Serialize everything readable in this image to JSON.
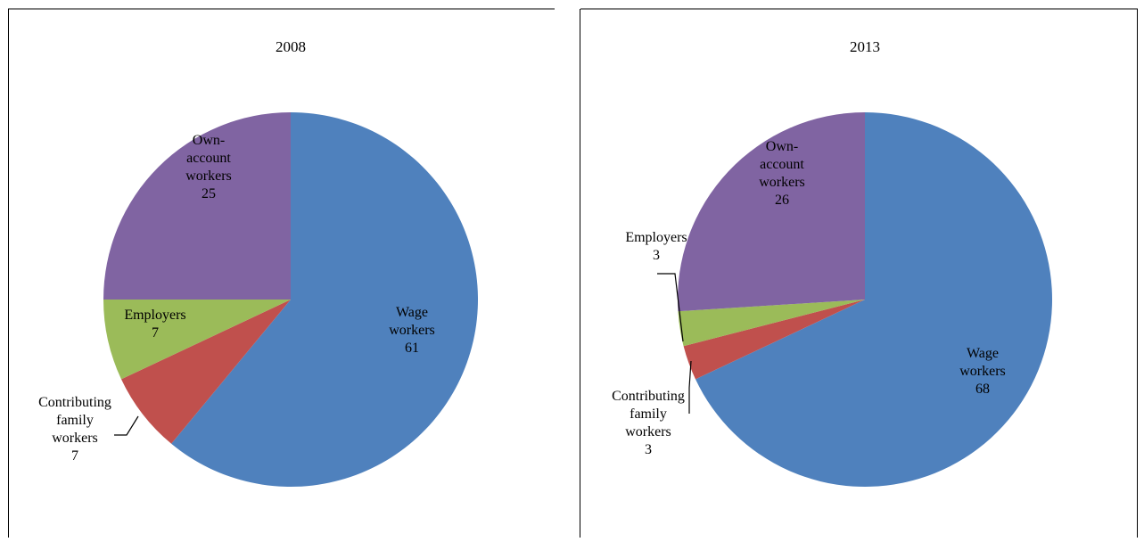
{
  "colors": {
    "wage": "#4f81bd",
    "contributing": "#c0504d",
    "employers": "#9bbb59",
    "own_account": "#8064a2",
    "border": "#000000"
  },
  "chart_data": [
    {
      "type": "pie",
      "title": "2008",
      "categories": [
        "Wage workers",
        "Contributing family workers",
        "Employers",
        "Own-account workers"
      ],
      "values": [
        61,
        7,
        7,
        25
      ],
      "labels": [
        [
          "Wage",
          "workers",
          "61"
        ],
        [
          "Contributing",
          "family",
          "workers",
          "7"
        ],
        [
          "Employers",
          "7"
        ],
        [
          "Own-",
          "account",
          "workers",
          "25"
        ]
      ]
    },
    {
      "type": "pie",
      "title": "2013",
      "categories": [
        "Wage workers",
        "Contributing family workers",
        "Employers",
        "Own-account workers"
      ],
      "values": [
        68,
        3,
        3,
        26
      ],
      "labels": [
        [
          "Wage",
          "workers",
          "68"
        ],
        [
          "Contributing",
          "family",
          "workers",
          "3"
        ],
        [
          "Employers",
          "3"
        ],
        [
          "Own-",
          "account",
          "workers",
          "26"
        ]
      ]
    }
  ]
}
